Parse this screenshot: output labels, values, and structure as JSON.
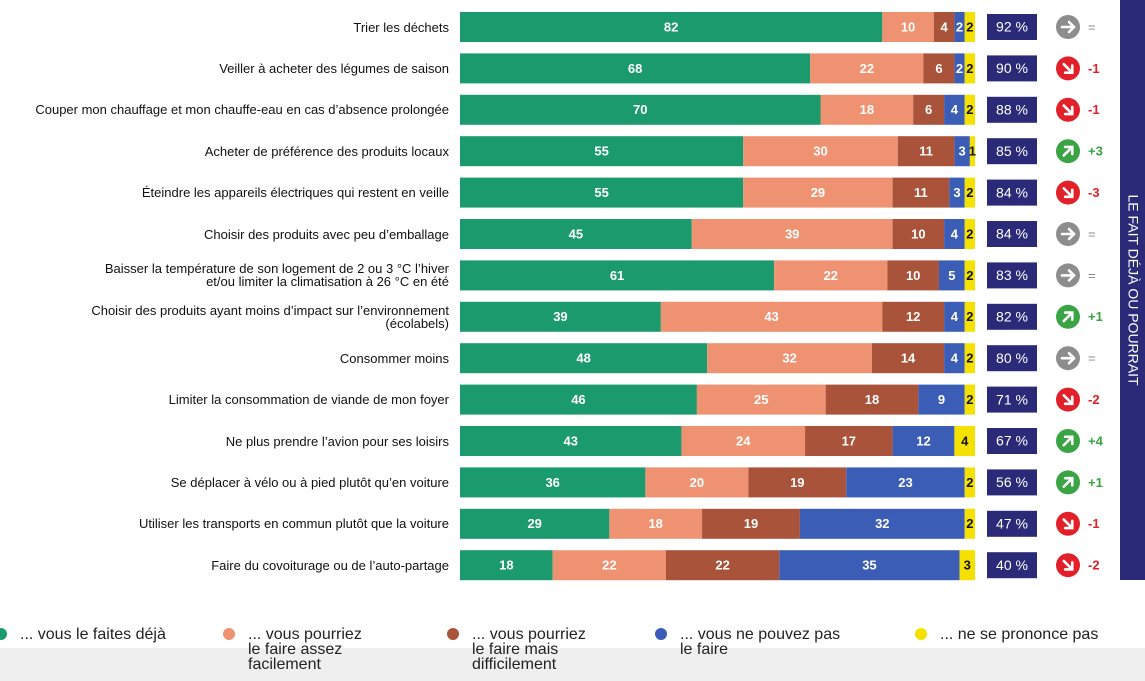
{
  "chart_data": {
    "type": "stacked-bar",
    "categories": [
      "Trier les déchets",
      "Veiller à acheter des légumes de saison",
      "Couper mon chauffage et mon chauffe-eau en cas d’absence prolongée",
      "Acheter de préférence des produits locaux",
      "Éteindre les appareils électriques qui restent en veille",
      "Choisir des produits avec peu d’emballage",
      "Baisser la température de son logement de 2 ou 3 °C l’hiver\net/ou limiter la climatisation à 26 °C en été",
      "Choisir des produits ayant moins d’impact sur l’environnement\n(écolabels)",
      "Consommer moins",
      "Limiter la consommation de viande de mon foyer",
      "Ne plus prendre l’avion pour ses loisirs",
      "Se déplacer à vélo ou à pied plutôt qu’en voiture",
      "Utiliser les transports en commun plutôt que la voiture",
      "Faire du covoiturage ou de l’auto-partage"
    ],
    "series": [
      {
        "name": "... vous le faites déjà",
        "color": "#1b9a6d",
        "values": [
          82,
          68,
          70,
          55,
          55,
          45,
          61,
          39,
          48,
          46,
          43,
          36,
          29,
          18
        ]
      },
      {
        "name": "... vous pourriez\nle faire assez\nfacilement",
        "color": "#ee9272",
        "values": [
          10,
          22,
          18,
          30,
          29,
          39,
          22,
          43,
          32,
          25,
          24,
          20,
          18,
          22
        ]
      },
      {
        "name": "... vous pourriez\nle faire mais\ndifficilement",
        "color": "#a9533a",
        "values": [
          4,
          6,
          6,
          11,
          11,
          10,
          10,
          12,
          14,
          18,
          17,
          19,
          19,
          22
        ]
      },
      {
        "name": "... vous ne pouvez pas\nle faire",
        "color": "#3c5db5",
        "values": [
          2,
          2,
          4,
          3,
          3,
          4,
          5,
          4,
          4,
          9,
          12,
          23,
          32,
          35
        ]
      },
      {
        "name": "... ne se prononce pas",
        "color": "#f5e100",
        "values": [
          2,
          2,
          2,
          1,
          2,
          2,
          2,
          2,
          2,
          2,
          4,
          2,
          2,
          3
        ]
      }
    ],
    "xlim": [
      0,
      100
    ],
    "totals": {
      "values": [
        92,
        90,
        88,
        85,
        84,
        84,
        83,
        82,
        80,
        71,
        67,
        56,
        47,
        40
      ],
      "value_labels": [
        "92 %",
        "90 %",
        "88 %",
        "85 %",
        "84 %",
        "84 %",
        "83 %",
        "82 %",
        "80 %",
        "71 %",
        "67 %",
        "56 %",
        "47 %",
        "40 %"
      ]
    },
    "changes": [
      "=",
      "-1",
      "-1",
      "+3",
      "-3",
      "=",
      "=",
      "+1",
      "=",
      "-2",
      "+4",
      "+1",
      "-1",
      "-2"
    ],
    "side_label": "LE FAIT DÉJÀ OU POURRAIT"
  }
}
